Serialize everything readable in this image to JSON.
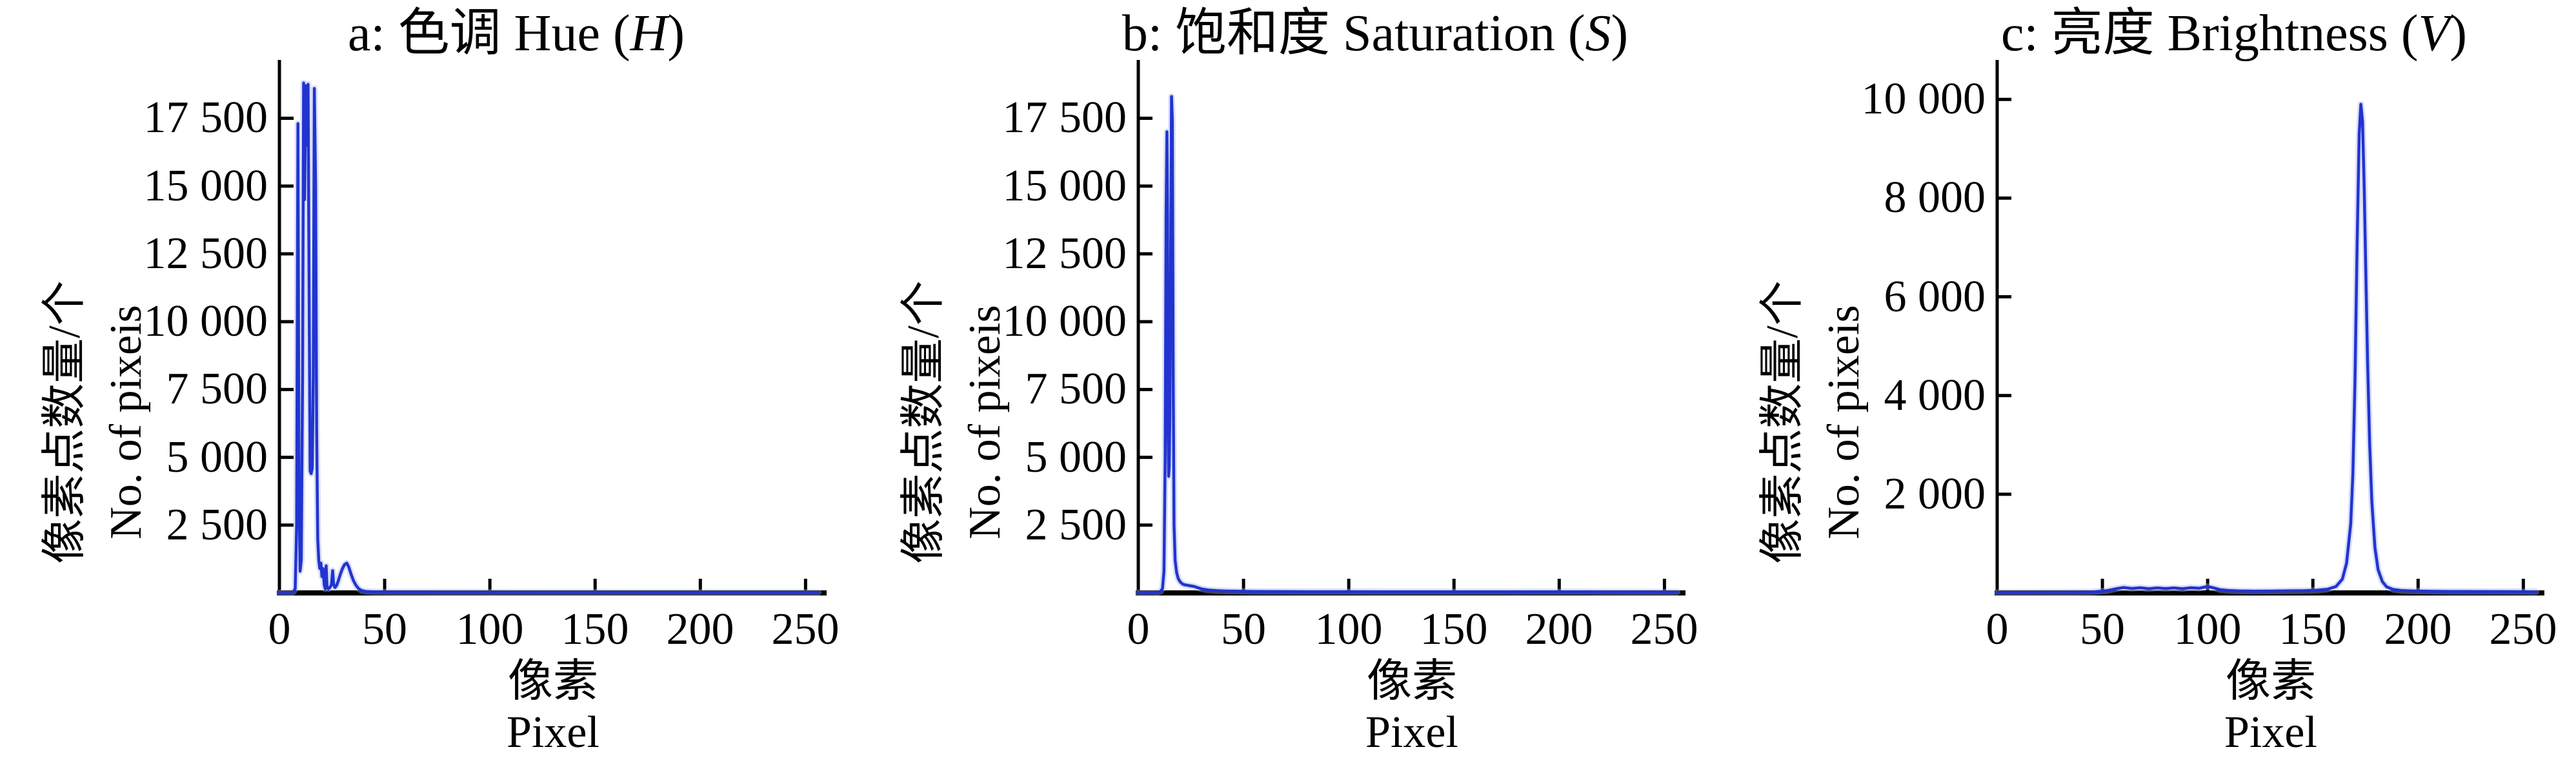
{
  "figure": {
    "background": "#ffffff",
    "axis_color": "#000000",
    "paren_open": " (",
    "paren_close": ")"
  },
  "chart_data": [
    {
      "type": "line",
      "panel_label": "a",
      "title_full": "a: 色调 Hue (H)",
      "title_prefix": "a: 色调 Hue",
      "title_var": "H",
      "xlabel_zh": "像素",
      "xlabel_en": "Pixel",
      "ylabel_zh": "像素点数量/个",
      "ylabel_en": "No. of pixeis",
      "xlim": [
        0,
        260
      ],
      "ylim": [
        0,
        19650
      ],
      "x_tick_values": [
        0,
        50,
        100,
        150,
        200,
        250
      ],
      "x_tick_labels": [
        "0",
        "50",
        "100",
        "150",
        "200",
        "250"
      ],
      "y_tick_values": [
        2500,
        5000,
        7500,
        10000,
        12500,
        15000,
        17500
      ],
      "y_tick_labels": [
        "2 500",
        "5 000",
        "7 500",
        "10 000",
        "12 500",
        "15 000",
        "17 500"
      ],
      "grid": false,
      "legend": null,
      "line_color": "#2134d0",
      "line_halo": "#9fadec",
      "points": [
        [
          0,
          0
        ],
        [
          3,
          4
        ],
        [
          5,
          12
        ],
        [
          6.5,
          30
        ],
        [
          7.5,
          150
        ],
        [
          8.2,
          2500
        ],
        [
          8.8,
          17300
        ],
        [
          9.3,
          4000
        ],
        [
          9.8,
          800
        ],
        [
          10.4,
          1200
        ],
        [
          11,
          8000
        ],
        [
          11.5,
          18800
        ],
        [
          12,
          14500
        ],
        [
          12.5,
          18700
        ],
        [
          13.1,
          16500
        ],
        [
          13.6,
          18750
        ],
        [
          14.2,
          10000
        ],
        [
          14.6,
          4500
        ],
        [
          15.1,
          4400
        ],
        [
          15.6,
          4600
        ],
        [
          16.1,
          8000
        ],
        [
          16.6,
          18600
        ],
        [
          17.2,
          15000
        ],
        [
          17.7,
          6000
        ],
        [
          18.2,
          2000
        ],
        [
          18.7,
          1200
        ],
        [
          19.2,
          900
        ],
        [
          19.7,
          1100
        ],
        [
          20.2,
          600
        ],
        [
          20.7,
          900
        ],
        [
          21.3,
          300
        ],
        [
          21.8,
          150
        ],
        [
          22.2,
          1000
        ],
        [
          22.6,
          250
        ],
        [
          23.2,
          150
        ],
        [
          24,
          200
        ],
        [
          24.7,
          300
        ],
        [
          25.3,
          820
        ],
        [
          25.8,
          300
        ],
        [
          26.4,
          200
        ],
        [
          27.2,
          280
        ],
        [
          28,
          450
        ],
        [
          29,
          700
        ],
        [
          30,
          900
        ],
        [
          31,
          1050
        ],
        [
          32,
          1100
        ],
        [
          33,
          950
        ],
        [
          34,
          700
        ],
        [
          35.2,
          450
        ],
        [
          36.4,
          280
        ],
        [
          37.6,
          160
        ],
        [
          39,
          90
        ],
        [
          41,
          55
        ],
        [
          44,
          42
        ],
        [
          48,
          36
        ],
        [
          55,
          30
        ],
        [
          65,
          28
        ],
        [
          80,
          26
        ],
        [
          100,
          24
        ],
        [
          125,
          22
        ],
        [
          150,
          22
        ],
        [
          175,
          20
        ],
        [
          200,
          20
        ],
        [
          225,
          18
        ],
        [
          250,
          18
        ],
        [
          256,
          18
        ]
      ]
    },
    {
      "type": "line",
      "panel_label": "b",
      "title_full": "b: 饱和度 Saturation (S)",
      "title_prefix": "b: 饱和度 Saturation",
      "title_var": "S",
      "xlabel_zh": "像素",
      "xlabel_en": "Pixel",
      "ylabel_zh": "像素点数量/个",
      "ylabel_en": "No. of pixeis",
      "xlim": [
        0,
        260
      ],
      "ylim": [
        0,
        19650
      ],
      "x_tick_values": [
        0,
        50,
        100,
        150,
        200,
        250
      ],
      "x_tick_labels": [
        "0",
        "50",
        "100",
        "150",
        "200",
        "250"
      ],
      "y_tick_values": [
        2500,
        5000,
        7500,
        10000,
        12500,
        15000,
        17500
      ],
      "y_tick_labels": [
        "2 500",
        "5 000",
        "7 500",
        "10 000",
        "12 500",
        "15 000",
        "17 500"
      ],
      "grid": false,
      "legend": null,
      "line_color": "#2134d0",
      "line_halo": "#9fadec",
      "points": [
        [
          0,
          0
        ],
        [
          4,
          3
        ],
        [
          7,
          8
        ],
        [
          9,
          18
        ],
        [
          10.5,
          50
        ],
        [
          11.5,
          160
        ],
        [
          12.2,
          800
        ],
        [
          12.8,
          5000
        ],
        [
          13.2,
          14000
        ],
        [
          13.6,
          17000
        ],
        [
          13.9,
          14000
        ],
        [
          14.1,
          6500
        ],
        [
          14.4,
          4300
        ],
        [
          14.7,
          4600
        ],
        [
          15,
          6500
        ],
        [
          15.4,
          12500
        ],
        [
          15.8,
          18300
        ],
        [
          16.2,
          17400
        ],
        [
          16.6,
          8000
        ],
        [
          17,
          2500
        ],
        [
          17.5,
          1200
        ],
        [
          18.2,
          750
        ],
        [
          19,
          520
        ],
        [
          20,
          400
        ],
        [
          21,
          330
        ],
        [
          22,
          300
        ],
        [
          23.5,
          280
        ],
        [
          25,
          260
        ],
        [
          26.5,
          240
        ],
        [
          28,
          200
        ],
        [
          30,
          150
        ],
        [
          33,
          110
        ],
        [
          37,
          85
        ],
        [
          42,
          70
        ],
        [
          48,
          62
        ],
        [
          55,
          55
        ],
        [
          65,
          50
        ],
        [
          80,
          46
        ],
        [
          100,
          44
        ],
        [
          120,
          42
        ],
        [
          140,
          40
        ],
        [
          160,
          40
        ],
        [
          180,
          38
        ],
        [
          200,
          42
        ],
        [
          210,
          40
        ],
        [
          220,
          36
        ],
        [
          240,
          34
        ],
        [
          256,
          32
        ]
      ]
    },
    {
      "type": "line",
      "panel_label": "c",
      "title_full": "c: 亮度 Brightness (V)",
      "title_prefix": "c: 亮度 Brightness",
      "title_var": "V",
      "xlabel_zh": "像素",
      "xlabel_en": "Pixel",
      "ylabel_zh": "像素点数量/个",
      "ylabel_en": "No. of pixeis",
      "xlim": [
        0,
        260
      ],
      "ylim": [
        0,
        10800
      ],
      "x_tick_values": [
        0,
        50,
        100,
        150,
        200,
        250
      ],
      "x_tick_labels": [
        "0",
        "50",
        "100",
        "150",
        "200",
        "250"
      ],
      "y_tick_values": [
        2000,
        4000,
        6000,
        8000,
        10000
      ],
      "y_tick_labels": [
        "2 000",
        "4 000",
        "6 000",
        "8 000",
        "10 000"
      ],
      "grid": false,
      "legend": null,
      "line_color": "#2134d0",
      "line_halo": "#9fadec",
      "points": [
        [
          0,
          8
        ],
        [
          15,
          10
        ],
        [
          30,
          12
        ],
        [
          45,
          18
        ],
        [
          52,
          45
        ],
        [
          56,
          80
        ],
        [
          60,
          110
        ],
        [
          64,
          90
        ],
        [
          68,
          105
        ],
        [
          72,
          85
        ],
        [
          76,
          100
        ],
        [
          80,
          88
        ],
        [
          84,
          100
        ],
        [
          88,
          85
        ],
        [
          92,
          105
        ],
        [
          96,
          95
        ],
        [
          100,
          130
        ],
        [
          103,
          100
        ],
        [
          106,
          65
        ],
        [
          110,
          48
        ],
        [
          115,
          40
        ],
        [
          122,
          36
        ],
        [
          130,
          38
        ],
        [
          138,
          42
        ],
        [
          146,
          46
        ],
        [
          152,
          55
        ],
        [
          157,
          75
        ],
        [
          161,
          130
        ],
        [
          164,
          280
        ],
        [
          166,
          600
        ],
        [
          168,
          1400
        ],
        [
          169,
          2400
        ],
        [
          170,
          4300
        ],
        [
          171,
          7000
        ],
        [
          172,
          9300
        ],
        [
          172.8,
          9900
        ],
        [
          173.6,
          9550
        ],
        [
          174.4,
          8200
        ],
        [
          175.2,
          6400
        ],
        [
          176,
          4700
        ],
        [
          177,
          3000
        ],
        [
          178,
          1850
        ],
        [
          179.5,
          920
        ],
        [
          181,
          470
        ],
        [
          183,
          230
        ],
        [
          185,
          125
        ],
        [
          188,
          72
        ],
        [
          192,
          50
        ],
        [
          197,
          40
        ],
        [
          205,
          34
        ],
        [
          215,
          30
        ],
        [
          230,
          28
        ],
        [
          245,
          26
        ],
        [
          256,
          24
        ]
      ]
    }
  ]
}
